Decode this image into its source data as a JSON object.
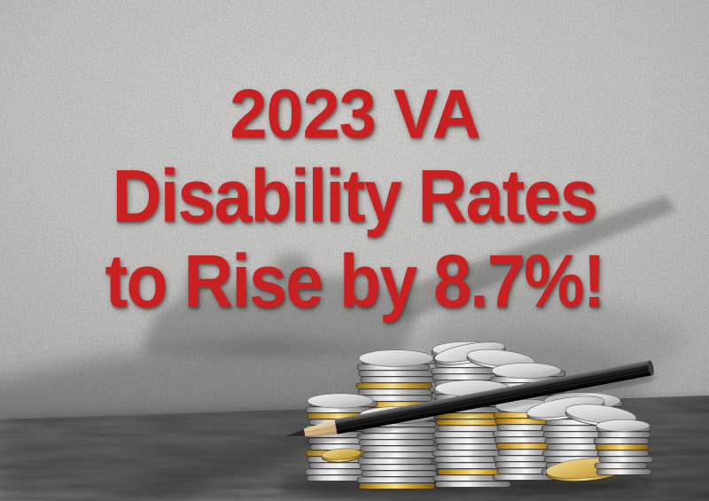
{
  "image_type": "promotional-graphic",
  "headline": {
    "line1": "2023 VA",
    "line2": "Disability Rates",
    "line3": "to Rise by 8.7%!",
    "full_text": "2023 VA Disability Rates to Rise by 8.7%!"
  },
  "colors": {
    "headline_red": "#c92121",
    "wall_gray": "#c7c6c4",
    "floor_gray": "#858482",
    "coin_silver": "#d9d9d9",
    "coin_gold": "#e3b84a",
    "pencil_black": "#141414",
    "shadow_gray": "#3f3f3f"
  },
  "illustration": {
    "elements": [
      "stacks-of-coins",
      "black-pencil",
      "tank-shaped-shadow-on-wall",
      "stucco-wall",
      "gray-wood-floor"
    ]
  }
}
